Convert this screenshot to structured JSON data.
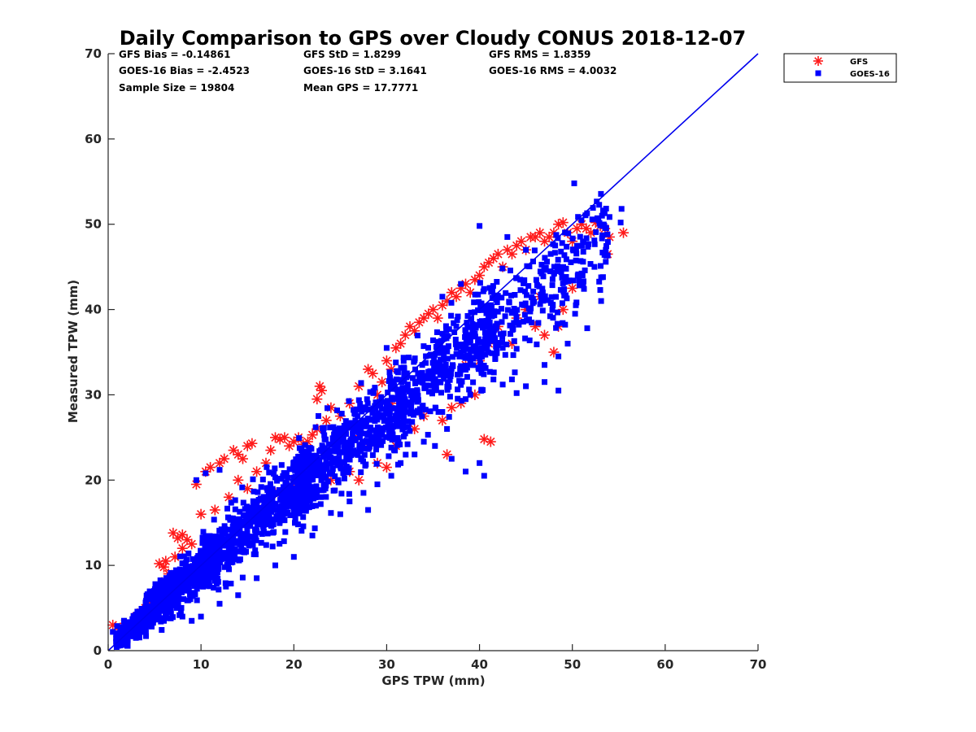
{
  "chart_data": {
    "type": "scatter",
    "title": "Daily Comparison to GPS over Cloudy CONUS 2018-12-07",
    "xlabel": "GPS TPW (mm)",
    "ylabel": "Measured TPW (mm)",
    "xlim": [
      0,
      70
    ],
    "ylim": [
      0,
      70
    ],
    "xticks": [
      "0",
      "10",
      "20",
      "30",
      "40",
      "50",
      "60",
      "70"
    ],
    "yticks": [
      "0",
      "10",
      "20",
      "30",
      "40",
      "50",
      "60",
      "70"
    ],
    "grid": false,
    "legend_position": "top-right-outside",
    "reference_line": {
      "x": [
        0,
        70
      ],
      "y": [
        0,
        70
      ],
      "color": "#0000ee"
    },
    "stats": [
      {
        "text": "GFS Bias = -0.14861"
      },
      {
        "text": "GFS StD = 1.8299"
      },
      {
        "text": "GFS RMS = 1.8359"
      },
      {
        "text": "GOES-16 Bias = -2.4523"
      },
      {
        "text": "GOES-16 StD = 3.1641"
      },
      {
        "text": "GOES-16 RMS = 4.0032"
      },
      {
        "text": "Sample Size = 19804"
      },
      {
        "text": "Mean GPS = 17.7771"
      }
    ],
    "series": [
      {
        "name": "GFS",
        "marker": "asterisk",
        "color": "#ff1a1a",
        "points": [
          [
            0.5,
            3.0
          ],
          [
            1.2,
            2.5
          ],
          [
            1.8,
            3.2
          ],
          [
            2.5,
            3.0
          ],
          [
            3.0,
            4.0
          ],
          [
            3.5,
            4.5
          ],
          [
            4.0,
            5.0
          ],
          [
            4.5,
            5.5
          ],
          [
            5.0,
            6.0
          ],
          [
            5.5,
            10.2
          ],
          [
            6.0,
            9.8
          ],
          [
            6.2,
            10.5
          ],
          [
            5.8,
            8.0
          ],
          [
            6.5,
            9.0
          ],
          [
            7.0,
            13.8
          ],
          [
            7.5,
            13.2
          ],
          [
            8.0,
            13.6
          ],
          [
            8.5,
            13.0
          ],
          [
            7.2,
            11.0
          ],
          [
            8.0,
            12.0
          ],
          [
            9.0,
            12.5
          ],
          [
            9.5,
            19.5
          ],
          [
            10.0,
            16.0
          ],
          [
            10.5,
            21.0
          ],
          [
            11.0,
            21.5
          ],
          [
            11.5,
            16.5
          ],
          [
            12.0,
            22.0
          ],
          [
            12.5,
            22.5
          ],
          [
            13.0,
            18.0
          ],
          [
            13.5,
            23.5
          ],
          [
            14.0,
            23.0
          ],
          [
            14.5,
            22.5
          ],
          [
            15.0,
            24.0
          ],
          [
            15.5,
            24.3
          ],
          [
            14.0,
            20.0
          ],
          [
            15.0,
            19.0
          ],
          [
            16.0,
            21.0
          ],
          [
            17.0,
            22.0
          ],
          [
            17.5,
            23.5
          ],
          [
            18.0,
            25.0
          ],
          [
            18.5,
            24.8
          ],
          [
            19.0,
            25.0
          ],
          [
            19.5,
            24.0
          ],
          [
            20.0,
            24.5
          ],
          [
            20.5,
            25.0
          ],
          [
            21.0,
            24.2
          ],
          [
            21.5,
            24.5
          ],
          [
            22.0,
            25.3
          ],
          [
            22.5,
            29.5
          ],
          [
            22.8,
            31.0
          ],
          [
            23.0,
            30.5
          ],
          [
            22.5,
            26.0
          ],
          [
            23.5,
            27.0
          ],
          [
            24.0,
            28.5
          ],
          [
            25.0,
            27.5
          ],
          [
            26.0,
            29.0
          ],
          [
            27.0,
            31.0
          ],
          [
            28.0,
            33.0
          ],
          [
            28.5,
            32.5
          ],
          [
            29.0,
            30.0
          ],
          [
            29.5,
            31.5
          ],
          [
            30.0,
            34.0
          ],
          [
            30.5,
            33.0
          ],
          [
            31.0,
            35.5
          ],
          [
            31.5,
            36.0
          ],
          [
            32.0,
            37.0
          ],
          [
            32.5,
            38.0
          ],
          [
            33.0,
            37.5
          ],
          [
            33.5,
            38.5
          ],
          [
            34.0,
            39.0
          ],
          [
            34.5,
            39.5
          ],
          [
            35.0,
            40.0
          ],
          [
            35.5,
            39.0
          ],
          [
            36.0,
            40.5
          ],
          [
            36.5,
            41.0
          ],
          [
            37.0,
            42.0
          ],
          [
            37.5,
            41.5
          ],
          [
            38.0,
            42.5
          ],
          [
            38.5,
            43.0
          ],
          [
            39.0,
            42.0
          ],
          [
            39.5,
            43.5
          ],
          [
            40.0,
            44.0
          ],
          [
            40.5,
            45.0
          ],
          [
            41.0,
            45.5
          ],
          [
            41.5,
            46.0
          ],
          [
            42.0,
            46.5
          ],
          [
            42.5,
            45.0
          ],
          [
            43.0,
            47.0
          ],
          [
            43.5,
            46.5
          ],
          [
            44.0,
            47.5
          ],
          [
            44.5,
            48.0
          ],
          [
            45.0,
            47.0
          ],
          [
            45.5,
            48.5
          ],
          [
            46.0,
            48.5
          ],
          [
            46.5,
            49.0
          ],
          [
            47.0,
            48.0
          ],
          [
            47.5,
            48.5
          ],
          [
            48.0,
            49.0
          ],
          [
            48.5,
            50.0
          ],
          [
            49.0,
            50.2
          ],
          [
            49.5,
            49.0
          ],
          [
            50.0,
            48.0
          ],
          [
            50.5,
            49.5
          ],
          [
            51.0,
            50.0
          ],
          [
            51.5,
            49.5
          ],
          [
            52.0,
            49.0
          ],
          [
            52.5,
            50.2
          ],
          [
            53.0,
            49.8
          ],
          [
            53.5,
            49.5
          ],
          [
            54.0,
            48.5
          ],
          [
            55.5,
            49.0
          ],
          [
            53.8,
            46.5
          ],
          [
            50.0,
            42.5
          ],
          [
            49.0,
            40.0
          ],
          [
            48.0,
            35.0
          ],
          [
            47.0,
            37.0
          ],
          [
            46.0,
            38.0
          ],
          [
            44.0,
            39.0
          ],
          [
            42.0,
            38.0
          ],
          [
            41.0,
            36.0
          ],
          [
            40.0,
            35.0
          ],
          [
            39.5,
            30.0
          ],
          [
            38.0,
            29.0
          ],
          [
            37.0,
            28.5
          ],
          [
            36.0,
            27.0
          ],
          [
            34.0,
            27.5
          ],
          [
            33.0,
            26.0
          ],
          [
            31.0,
            24.0
          ],
          [
            30.0,
            21.5
          ],
          [
            29.0,
            22.0
          ],
          [
            27.0,
            20.0
          ],
          [
            26.0,
            21.0
          ],
          [
            25.0,
            22.0
          ],
          [
            24.0,
            20.0
          ],
          [
            36.5,
            23.0
          ],
          [
            40.5,
            24.8
          ],
          [
            41.2,
            24.5
          ],
          [
            30.5,
            29.0
          ],
          [
            36.0,
            33.0
          ],
          [
            38.5,
            33.5
          ],
          [
            43.5,
            36.0
          ],
          [
            45.0,
            40.0
          ],
          [
            46.5,
            41.5
          ],
          [
            48.5,
            38.0
          ],
          [
            40.0,
            34.0
          ],
          [
            28.0,
            24.0
          ],
          [
            26.5,
            25.0
          ],
          [
            20.0,
            20.0
          ],
          [
            18.0,
            18.5
          ],
          [
            16.0,
            17.0
          ],
          [
            12.0,
            13.0
          ],
          [
            10.0,
            11.0
          ],
          [
            8.0,
            9.0
          ],
          [
            3.0,
            3.5
          ]
        ]
      },
      {
        "name": "GOES-16",
        "marker": "square",
        "color": "#0000ff",
        "bands": [
          {
            "x": [
              0.8,
              5
            ],
            "slope": 0.92,
            "offset": 0.2,
            "spread": 1.6,
            "count": 260
          },
          {
            "x": [
              4,
              12
            ],
            "slope": 0.88,
            "offset": 0.8,
            "spread": 2.6,
            "count": 480
          },
          {
            "x": [
              10,
              22
            ],
            "slope": 0.86,
            "offset": 1.5,
            "spread": 3.8,
            "count": 560
          },
          {
            "x": [
              20,
              32
            ],
            "slope": 0.86,
            "offset": 1.8,
            "spread": 4.5,
            "count": 460
          },
          {
            "x": [
              30,
              42
            ],
            "slope": 0.88,
            "offset": 1.5,
            "spread": 5.0,
            "count": 380
          },
          {
            "x": [
              40,
              54
            ],
            "slope": 0.88,
            "offset": 1.5,
            "spread": 5.5,
            "count": 260
          }
        ],
        "points": [
          [
            50.2,
            54.8
          ],
          [
            55.3,
            51.8
          ],
          [
            55.2,
            50.2
          ],
          [
            53.2,
            51.0
          ],
          [
            52.8,
            50.5
          ],
          [
            53.6,
            47.0
          ],
          [
            53.6,
            45.6
          ],
          [
            53.3,
            43.8
          ],
          [
            53.0,
            42.3
          ],
          [
            53.1,
            41.0
          ],
          [
            51.1,
            44.0
          ],
          [
            51.6,
            37.8
          ],
          [
            50.3,
            39.5
          ],
          [
            49.5,
            36.0
          ],
          [
            48.5,
            34.5
          ],
          [
            47.0,
            33.5
          ],
          [
            48.5,
            30.5
          ],
          [
            47.0,
            31.5
          ],
          [
            45.0,
            31.0
          ],
          [
            44.0,
            30.2
          ],
          [
            42.5,
            31.2
          ],
          [
            41.5,
            31.8
          ],
          [
            40.2,
            30.6
          ],
          [
            39.0,
            30.0
          ],
          [
            38.5,
            29.5
          ],
          [
            36.5,
            26.0
          ],
          [
            35.2,
            24.0
          ],
          [
            37.0,
            22.5
          ],
          [
            38.5,
            21.0
          ],
          [
            40.0,
            22.0
          ],
          [
            40.5,
            20.5
          ],
          [
            34.0,
            24.5
          ],
          [
            33.0,
            23.0
          ],
          [
            31.5,
            22.0
          ],
          [
            30.5,
            20.5
          ],
          [
            29.0,
            19.5
          ],
          [
            27.5,
            18.5
          ],
          [
            26.0,
            17.5
          ],
          [
            25.0,
            16.0
          ],
          [
            28.0,
            16.5
          ],
          [
            40.0,
            49.8
          ],
          [
            43.0,
            48.5
          ],
          [
            45.0,
            47.0
          ],
          [
            38.0,
            43.0
          ],
          [
            36.0,
            41.5
          ],
          [
            30.0,
            35.5
          ],
          [
            9.5,
            20.0
          ],
          [
            10.5,
            20.8
          ],
          [
            12.0,
            21.2
          ],
          [
            22.0,
            13.5
          ],
          [
            20.0,
            11.0
          ],
          [
            18.0,
            10.0
          ],
          [
            16.0,
            8.5
          ],
          [
            14.0,
            6.5
          ],
          [
            12.0,
            5.5
          ],
          [
            10.0,
            4.0
          ],
          [
            9.0,
            3.5
          ],
          [
            8.0,
            4.0
          ],
          [
            6.0,
            3.5
          ],
          [
            4.0,
            2.8
          ],
          [
            3.0,
            2.5
          ],
          [
            2.0,
            2.2
          ],
          [
            1.0,
            2.0
          ],
          [
            0.5,
            2.2
          ]
        ]
      }
    ]
  }
}
